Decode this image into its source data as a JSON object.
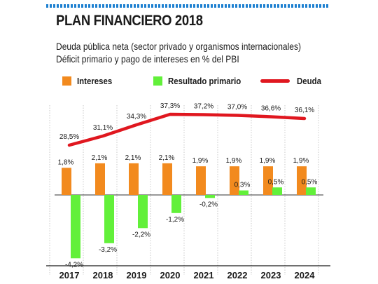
{
  "header": {
    "title": "PLAN FINANCIERO 2018",
    "subtitle_line1": "Deuda pública neta (sector privado y organismos internacionales)",
    "subtitle_line2": "Déficit primario y pago de intereses en % del PBI"
  },
  "legend": {
    "intereses": "Intereses",
    "resultado": "Resultado primario",
    "deuda": "Deuda"
  },
  "colors": {
    "intereses": "#f28a1e",
    "resultado": "#62f03a",
    "deuda": "#e0171f",
    "accent": "#1c7fd0"
  },
  "chart_data": {
    "type": "bar",
    "title": "PLAN FINANCIERO 2018",
    "categories": [
      "2017",
      "2018",
      "2019",
      "2020",
      "2021",
      "2022",
      "2023",
      "2024"
    ],
    "series": [
      {
        "name": "Intereses",
        "values": [
          1.8,
          2.1,
          2.1,
          2.1,
          1.9,
          1.9,
          1.9,
          1.9
        ],
        "labels": [
          "1,8%",
          "2,1%",
          "2,1%",
          "2,1%",
          "1,9%",
          "1,9%",
          "1,9%",
          "1,9%"
        ]
      },
      {
        "name": "Resultado primario",
        "values": [
          -4.2,
          -3.2,
          -2.2,
          -1.2,
          -0.2,
          0.3,
          0.5,
          0.5
        ],
        "labels": [
          "-4,2%",
          "-3,2%",
          "-2,2%",
          "-1,2%",
          "-0,2%",
          "0,3%",
          "0,5%",
          "0,5%"
        ]
      },
      {
        "name": "Deuda",
        "type": "line",
        "values": [
          28.5,
          31.1,
          34.3,
          37.3,
          37.2,
          37.0,
          36.6,
          36.1
        ],
        "labels": [
          "28,5%",
          "31,1%",
          "34,3%",
          "37,3%",
          "37,2%",
          "37,0%",
          "36,6%",
          "36,1%"
        ]
      }
    ],
    "legend_position": "top",
    "grid": false
  }
}
